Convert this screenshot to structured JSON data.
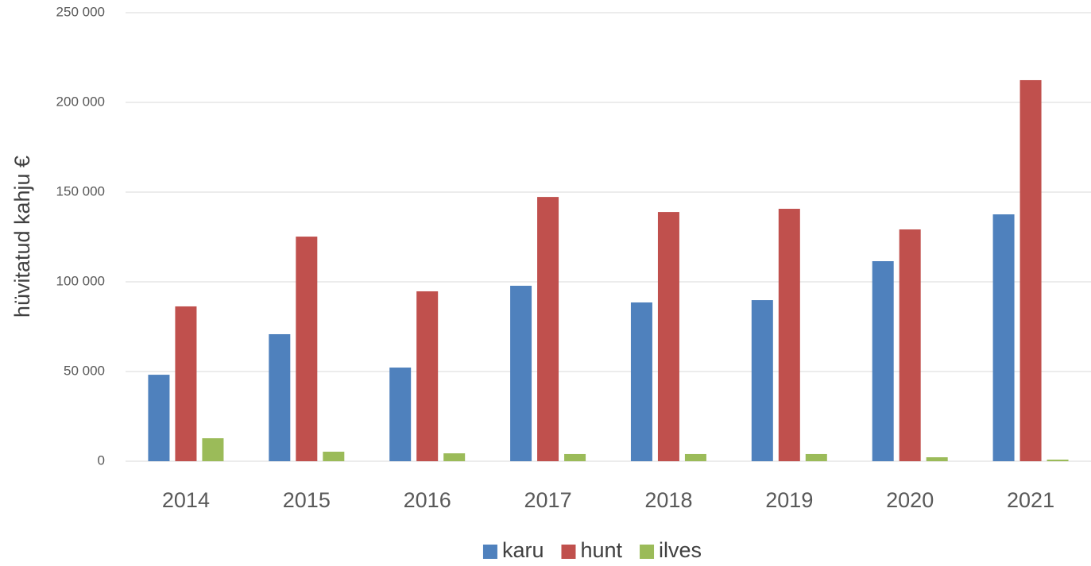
{
  "chart_data": {
    "type": "bar",
    "ylabel": "hüvitatud kahju €",
    "categories": [
      "2014",
      "2015",
      "2016",
      "2017",
      "2018",
      "2019",
      "2020",
      "2021"
    ],
    "series": [
      {
        "name": "karu",
        "color": "#4f81bd",
        "values": [
          48200,
          70800,
          52200,
          97800,
          88500,
          89800,
          111500,
          137600
        ]
      },
      {
        "name": "hunt",
        "color": "#c0504d",
        "values": [
          86300,
          125200,
          94700,
          147300,
          138900,
          140700,
          129200,
          212400
        ]
      },
      {
        "name": "ilves",
        "color": "#9bbb59",
        "values": [
          12800,
          5300,
          4400,
          4000,
          4000,
          4000,
          2200,
          900
        ]
      }
    ],
    "ylim": [
      0,
      250000
    ],
    "yticks": [
      0,
      {
        "value": 50000,
        "label": "50 000"
      },
      {
        "value": 100000,
        "label": "100 000"
      },
      {
        "value": 150000,
        "label": "150 000"
      },
      {
        "value": 200000,
        "label": "200 000"
      },
      {
        "value": 250000,
        "label": "250 000"
      }
    ],
    "grid": true,
    "legend": "bottom"
  }
}
